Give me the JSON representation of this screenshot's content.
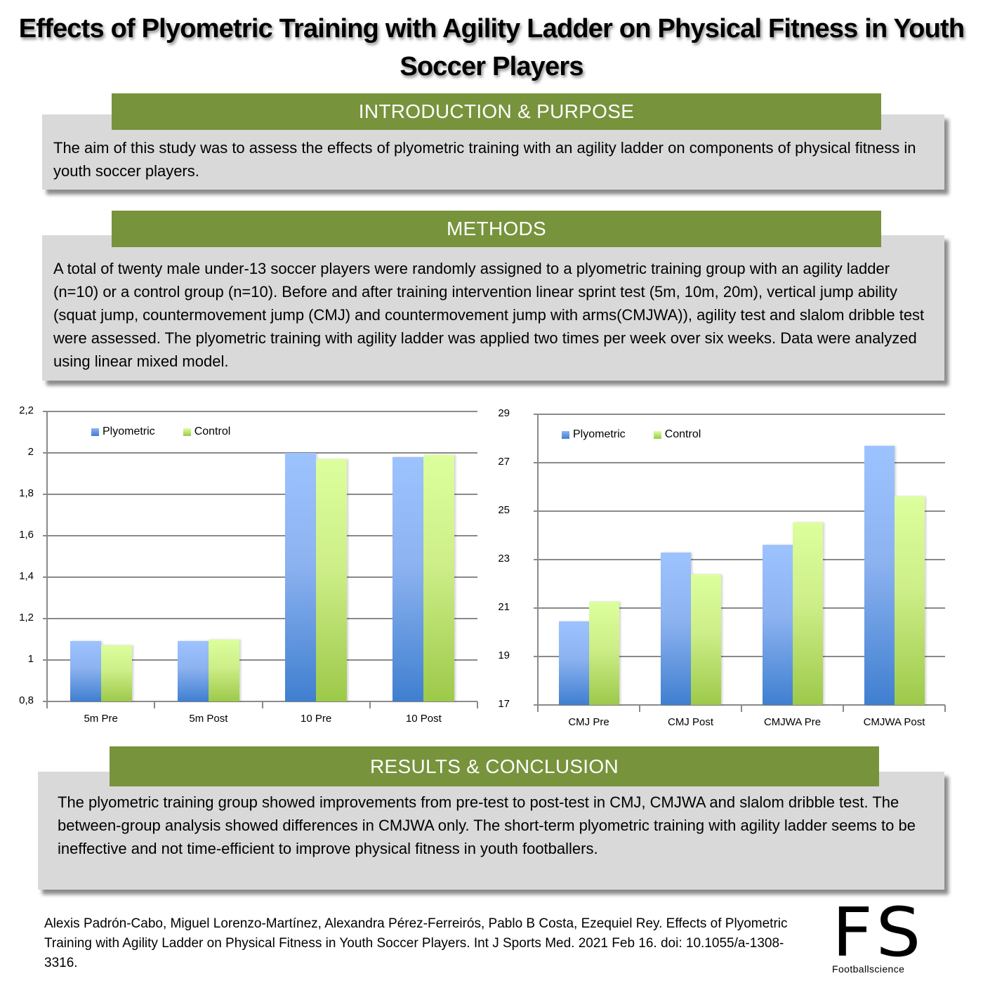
{
  "title": "Effects of Plyometric Training with Agility Ladder on Physical Fitness in Youth Soccer Players",
  "sections": {
    "introduction": {
      "header": "INTRODUCTION & PURPOSE",
      "text": "The aim of this study was to assess the effects of plyometric training with an agility ladder on components of physical fitness in youth soccer players."
    },
    "methods": {
      "header": "METHODS",
      "text": "A total of twenty male under-13 soccer players were randomly assigned to a plyometric training group with an agility ladder (n=10) or a control group (n=10). Before and after training intervention linear sprint test (5m, 10m, 20m), vertical jump ability (squat jump, countermovement jump (CMJ) and countermovement jump with arms(CMJWA)), agility test and slalom dribble test were assessed. The plyometric training with agility ladder was applied two times per week over six weeks. Data were analyzed using linear mixed model."
    },
    "results": {
      "header": "RESULTS & CONCLUSION",
      "text": "The plyometric training group showed improvements from pre-test to post-test in CMJ, CMJWA and slalom dribble test. The between-group analysis showed differences in CMJWA only. The short-term plyometric training with agility ladder seems to be ineffective and not time-efficient to improve physical fitness in youth footballers."
    }
  },
  "colors": {
    "section_header": "#77933c",
    "box_background": "#d9d9d9",
    "plyometric": "#4f81bd",
    "control": "#9bbb59"
  },
  "chart_data": [
    {
      "type": "bar",
      "title": "",
      "xlabel": "",
      "ylabel": "",
      "categories": [
        "5m Pre",
        "5m Post",
        "10 Pre",
        "10 Post"
      ],
      "series": [
        {
          "name": "Plyometric",
          "values": [
            1.09,
            1.09,
            2.0,
            1.98
          ]
        },
        {
          "name": "Control",
          "values": [
            1.07,
            1.1,
            1.97,
            1.99
          ]
        }
      ],
      "ylim": [
        0.8,
        2.2
      ],
      "yticks": [
        "0,8",
        "1",
        "1,2",
        "1,4",
        "1,6",
        "1,8",
        "2",
        "2,2"
      ],
      "grid": true,
      "legend_position": "top-left inside"
    },
    {
      "type": "bar",
      "title": "",
      "xlabel": "",
      "ylabel": "",
      "categories": [
        "CMJ Pre",
        "CMJ Post",
        "CMJWA Pre",
        "CMJWA Post"
      ],
      "series": [
        {
          "name": "Plyometric",
          "values": [
            20.45,
            23.3,
            23.6,
            27.7
          ]
        },
        {
          "name": "Control",
          "values": [
            21.25,
            22.4,
            24.55,
            25.6
          ]
        }
      ],
      "ylim": [
        17,
        29
      ],
      "yticks": [
        "17",
        "19",
        "21",
        "23",
        "25",
        "27",
        "29"
      ],
      "grid": true,
      "legend_position": "top-left inside"
    }
  ],
  "legend": {
    "plyometric": "Plyometric",
    "control": "Control"
  },
  "citation": "Alexis Padrón-Cabo, Miguel Lorenzo-Martínez, Alexandra Pérez-Ferreirós, Pablo B Costa, Ezequiel Rey. Effects of Plyometric Training with Agility Ladder on Physical Fitness in Youth Soccer Players. Int J Sports Med. 2021 Feb 16. doi: 10.1055/a-1308-3316.",
  "logo": {
    "mark": "FS",
    "name": "Footballscience"
  }
}
